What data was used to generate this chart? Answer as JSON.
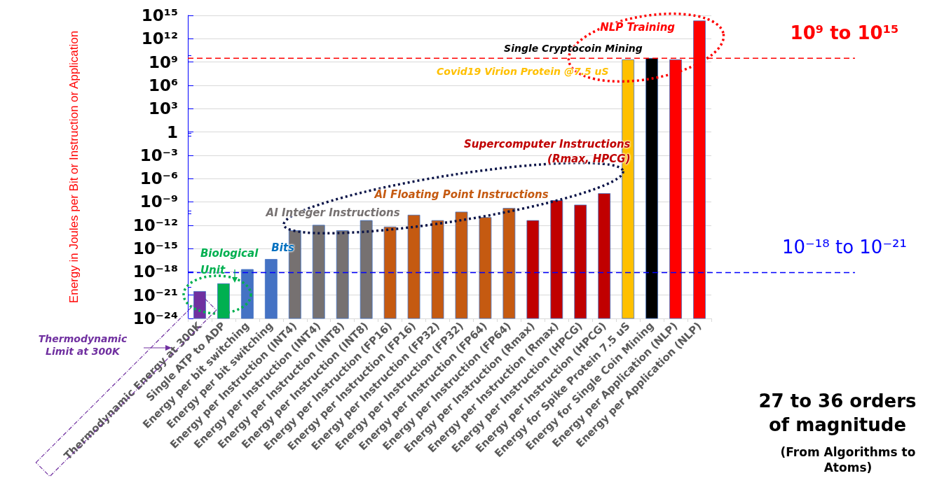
{
  "chart_data": {
    "type": "bar",
    "ylabel": "Energy in Joules per Bit or Instruction or Application",
    "categories": [
      "Thermodynamic Energy at 300K",
      "Single ATP to ADP",
      "Energy per bit switching",
      "Energy per bit switching",
      "Energy per Instruction (INT4)",
      "Energy per Instruction (INT4)",
      "Energy per Instruction (INT8)",
      "Energy per Instruction (INT8)",
      "Energy per Instruction (FP16)",
      "Energy per Instruction (FP16)",
      "Energy per Instruction (FP32)",
      "Energy per Instruction (FP32)",
      "Energy per Instruction (FP64)",
      "Energy per Instruction (FP64)",
      "Energy per Instruction (Rmax)",
      "Energy per Instruction (Rmax)",
      "Energy per Instruction (HPCG)",
      "Energy per Instruction (HPCG)",
      "Energy for Spike Protein 7.5 uS",
      "Energy for Single Coin Mining",
      "Energy per Application (NLP)",
      "Energy per Application (NLP)"
    ],
    "values": [
      3e-21,
      3e-20,
      2e-18,
      4e-17,
      2e-13,
      1e-12,
      2e-13,
      4e-12,
      6e-13,
      2e-11,
      4e-12,
      5e-11,
      1e-11,
      1.5e-10,
      4e-12,
      1.5e-09,
      4e-10,
      1.2e-08,
      2000000000.0,
      3000000000.0,
      2000000000.0,
      200000000000000.0
    ],
    "colors": [
      "#7030a0",
      "#00b050",
      "#4472c4",
      "#4472c4",
      "#767171",
      "#767171",
      "#767171",
      "#767171",
      "#c55a11",
      "#c55a11",
      "#c55a11",
      "#c55a11",
      "#c55a11",
      "#c55a11",
      "#c00000",
      "#c00000",
      "#c00000",
      "#c00000",
      "#ffc000",
      "#000000",
      "#ff0000",
      "#ff0000"
    ],
    "log": true,
    "ylim": [
      1e-24,
      1000000000000000.0
    ],
    "yticks": [
      {
        "value": 1e-24,
        "label": "10⁻²⁴"
      },
      {
        "value": 1e-21,
        "label": "10⁻²¹"
      },
      {
        "value": 1e-18,
        "label": "10⁻¹⁸"
      },
      {
        "value": 1e-15,
        "label": "10⁻¹⁵"
      },
      {
        "value": 1e-12,
        "label": "10⁻¹²"
      },
      {
        "value": 1e-09,
        "label": "10⁻⁹"
      },
      {
        "value": 1e-06,
        "label": "10⁻⁶"
      },
      {
        "value": 0.001,
        "label": "10⁻³"
      },
      1,
      {
        "value": 1000.0,
        "label": "10³"
      },
      {
        "value": 1000000.0,
        "label": "10⁶"
      },
      {
        "value": 1000000000.0,
        "label": "10⁹"
      },
      {
        "value": 1000000000000.0,
        "label": "10¹²"
      },
      {
        "value": 1000000000000000.0,
        "label": "10¹⁵"
      }
    ],
    "grid": "y",
    "ref_lines": [
      {
        "axis": "y",
        "value": 3000000000.0,
        "label": "10⁹ to 10¹⁵",
        "color": "#ff0000",
        "line_style": "dashed"
      },
      {
        "axis": "y",
        "value": 8e-19,
        "label": "10⁻¹⁸ to 10⁻²¹",
        "color": "#0000ff",
        "line_style": "dashed"
      }
    ],
    "annotations": [
      "Biological Unit",
      "Bits",
      "AI Integer Instructions",
      "AI Floating Point Instructions",
      "Supercomputer Instructions (Rmax, HPCG)",
      "Covid19 Virion Protein @7.5 uS",
      "Single Cryptocoin Mining",
      "NLP Training",
      "Thermodynamic Limit at 300K",
      "27 to 36 orders of magnitude",
      "(From Algorithms to Atoms)"
    ]
  }
}
